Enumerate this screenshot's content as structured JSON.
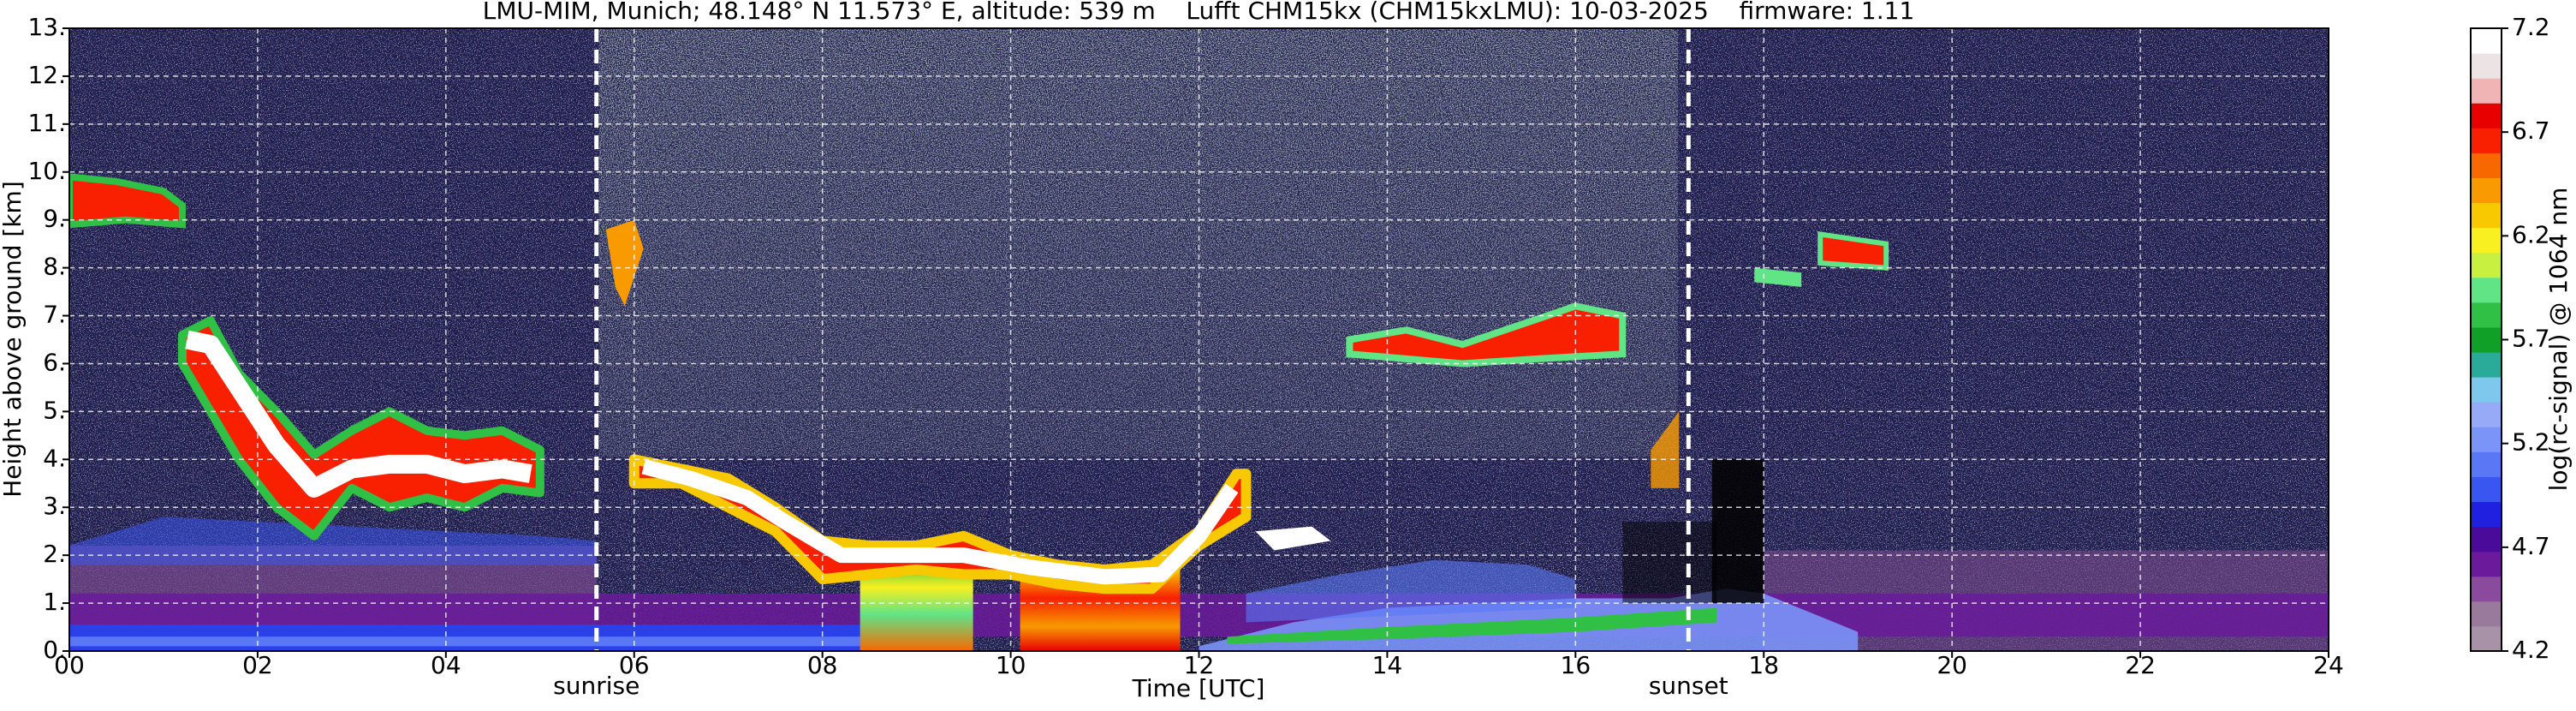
{
  "chart_data": {
    "type": "heatmap",
    "title": "LMU-MIM, Munich; 48.148° N 11.573° E, altitude: 539 m    Lufft CHM15kx (CHM15kxLMU): 10-03-2025    firmware: 1.11",
    "x_label": "Time [UTC]",
    "y_label": "Height above ground [km]",
    "xlim": [
      0,
      24
    ],
    "xticks": [
      {
        "value": 0,
        "label": "00"
      },
      {
        "value": 2,
        "label": "02"
      },
      {
        "value": 4,
        "label": "04"
      },
      {
        "value": 6,
        "label": "06"
      },
      {
        "value": 8,
        "label": "08"
      },
      10,
      12,
      14,
      16,
      18,
      20,
      22,
      24
    ],
    "ylim": [
      0,
      13
    ],
    "yticks": [
      {
        "value": 0,
        "label": "0."
      },
      {
        "value": 1,
        "label": "1."
      },
      {
        "value": 2,
        "label": "2."
      },
      {
        "value": 3,
        "label": "3."
      },
      {
        "value": 4,
        "label": "4."
      },
      {
        "value": 5,
        "label": "5."
      },
      {
        "value": 6,
        "label": "6."
      },
      {
        "value": 7,
        "label": "7."
      },
      {
        "value": 8,
        "label": "8."
      },
      {
        "value": 9,
        "label": "9."
      },
      {
        "value": 10,
        "label": "10."
      },
      {
        "value": 11,
        "label": "11."
      },
      {
        "value": 12,
        "label": "12."
      },
      {
        "value": 13,
        "label": "13."
      }
    ],
    "grid": true,
    "grid_color": "#ffffff",
    "markers": [
      {
        "name": "sunrise",
        "x": 5.6
      },
      {
        "name": "sunset",
        "x": 17.2
      }
    ],
    "colorbar": {
      "label": "log(rc-signal) @ 1064 nm",
      "lim": [
        4.2,
        7.2
      ],
      "ticks": [
        4.2,
        4.7,
        5.2,
        5.7,
        6.2,
        6.7,
        7.2
      ],
      "colors": [
        "#a892a8",
        "#9a7a9c",
        "#8a4a9e",
        "#6a1a9a",
        "#4a0a9a",
        "#2020e0",
        "#3a56f0",
        "#5a78f6",
        "#7a94f8",
        "#96aaf8",
        "#7ec8ee",
        "#2aaa98",
        "#10a028",
        "#30c046",
        "#60e486",
        "#c8f040",
        "#f8f020",
        "#f8c800",
        "#f89a00",
        "#f86800",
        "#f82000",
        "#e80000",
        "#f0b4b4",
        "#ece4e4",
        "#ffffff"
      ]
    }
  }
}
